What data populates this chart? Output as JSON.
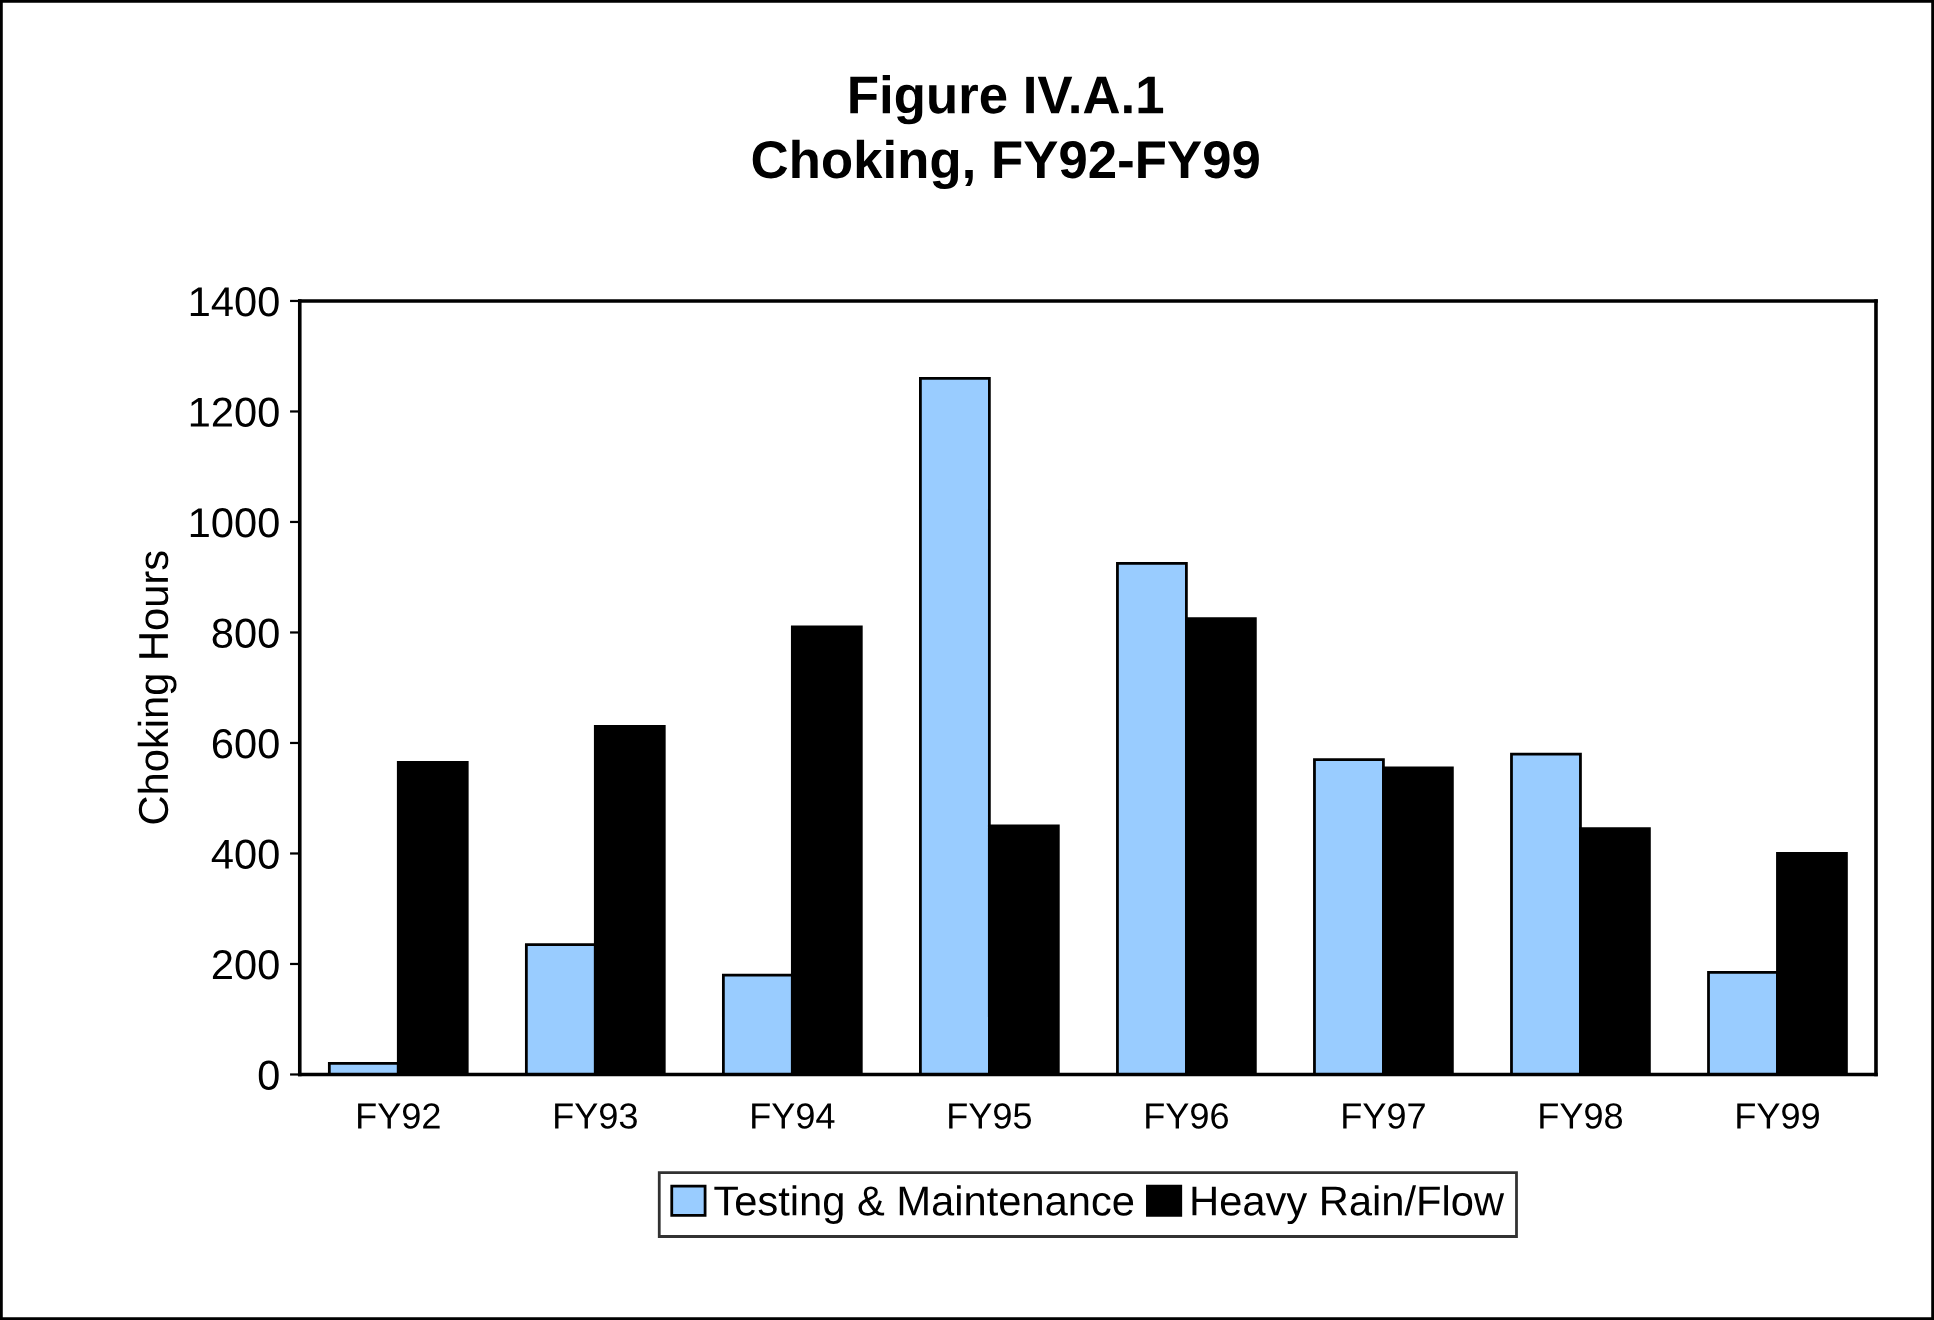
{
  "chart_data": {
    "type": "bar",
    "title": "Figure IV.A.1\nChoking, FY92-FY99",
    "ylabel": "Choking Hours",
    "categories": [
      "FY92",
      "FY93",
      "FY94",
      "FY95",
      "FY96",
      "FY97",
      "FY98",
      "FY99"
    ],
    "series": [
      {
        "name": "Testing & Maintenance",
        "color": "#99ccff",
        "values": [
          20,
          235,
          180,
          1260,
          925,
          570,
          580,
          185
        ]
      },
      {
        "name": "Heavy Rain/Flow",
        "color": "#000000",
        "values": [
          565,
          630,
          810,
          450,
          825,
          555,
          445,
          400
        ]
      }
    ],
    "ylim": [
      0,
      1400
    ],
    "yticks": [
      0,
      200,
      400,
      600,
      800,
      1000,
      1200,
      1400
    ],
    "grid": false,
    "legend": "bottom"
  }
}
